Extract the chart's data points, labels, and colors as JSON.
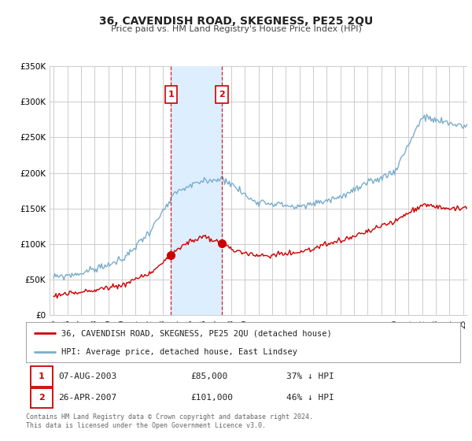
{
  "title": "36, CAVENDISH ROAD, SKEGNESS, PE25 2QU",
  "subtitle": "Price paid vs. HM Land Registry's House Price Index (HPI)",
  "ylim": [
    0,
    350000
  ],
  "yticks": [
    0,
    50000,
    100000,
    150000,
    200000,
    250000,
    300000,
    350000
  ],
  "ytick_labels": [
    "£0",
    "£50K",
    "£100K",
    "£150K",
    "£200K",
    "£250K",
    "£300K",
    "£350K"
  ],
  "xlim_start": 1994.7,
  "xlim_end": 2025.3,
  "transaction1_year": 2003.6,
  "transaction1_price": 85000,
  "transaction2_year": 2007.32,
  "transaction2_price": 101000,
  "legend_line1": "36, CAVENDISH ROAD, SKEGNESS, PE25 2QU (detached house)",
  "legend_line2": "HPI: Average price, detached house, East Lindsey",
  "table_row1_date": "07-AUG-2003",
  "table_row1_price": "£85,000",
  "table_row1_pct": "37% ↓ HPI",
  "table_row2_date": "26-APR-2007",
  "table_row2_price": "£101,000",
  "table_row2_pct": "46% ↓ HPI",
  "footer": "Contains HM Land Registry data © Crown copyright and database right 2024.\nThis data is licensed under the Open Government Licence v3.0.",
  "red_color": "#cc0000",
  "blue_color": "#7aadcc",
  "shade_color": "#ddeeff",
  "grid_color": "#cccccc",
  "bg_color": "#ffffff"
}
